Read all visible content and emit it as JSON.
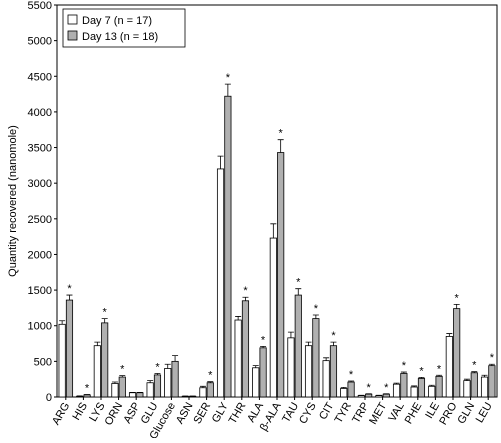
{
  "chart_data": {
    "type": "bar",
    "y_label": "Quantity recovered (nanomole)",
    "categories": [
      "ARG",
      "HIS",
      "LYS",
      "ORN",
      "ASP",
      "GLU",
      "Glucose",
      "ASN",
      "SER",
      "GLY",
      "THR",
      "ALA",
      "β-ALA",
      "TAU",
      "CYS",
      "CIT",
      "TYR",
      "TRP",
      "MET",
      "VAL",
      "PHE",
      "ILE",
      "PRO",
      "GLN",
      "LEU"
    ],
    "series": [
      {
        "name": "Day 7 (n = 17)",
        "color": "#ffffff",
        "values": [
          1020,
          10,
          720,
          190,
          60,
          200,
          400,
          10,
          130,
          3200,
          1080,
          410,
          2230,
          830,
          720,
          510,
          120,
          20,
          20,
          180,
          140,
          150,
          850,
          230,
          280
        ],
        "errors": [
          50,
          5,
          50,
          20,
          5,
          30,
          60,
          3,
          20,
          180,
          50,
          30,
          200,
          80,
          50,
          40,
          15,
          5,
          5,
          15,
          15,
          15,
          40,
          20,
          25
        ]
      },
      {
        "name": "Day 13 (n = 18)",
        "color": "#b0b0b0",
        "values": [
          1360,
          30,
          1040,
          280,
          60,
          310,
          500,
          10,
          200,
          4220,
          1350,
          690,
          3430,
          1430,
          1100,
          720,
          210,
          40,
          40,
          330,
          260,
          290,
          1240,
          340,
          440
        ],
        "errors": [
          70,
          5,
          60,
          20,
          5,
          20,
          80,
          3,
          15,
          170,
          50,
          20,
          180,
          90,
          50,
          50,
          15,
          5,
          5,
          20,
          15,
          15,
          60,
          15,
          20
        ]
      }
    ],
    "significance_label": "*",
    "significant": [
      true,
      true,
      true,
      true,
      false,
      true,
      false,
      false,
      true,
      true,
      true,
      true,
      true,
      true,
      true,
      true,
      true,
      true,
      true,
      true,
      true,
      true,
      true,
      true,
      true
    ],
    "ylim": [
      0,
      5500
    ],
    "yticks": [
      0,
      500,
      1000,
      1500,
      2000,
      2500,
      3000,
      3500,
      4000,
      4500,
      5000,
      5500
    ],
    "legend": "top-left"
  }
}
